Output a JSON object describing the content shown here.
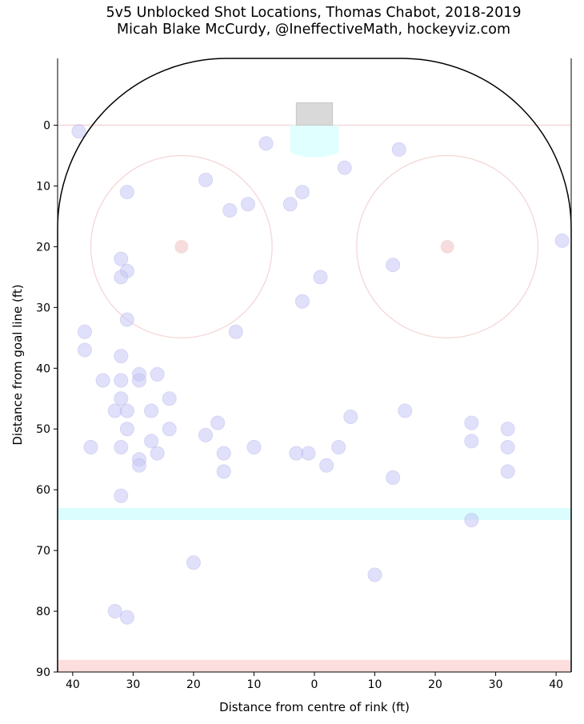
{
  "chart_data": {
    "type": "scatter",
    "title_line1": "5v5 Unblocked Shot Locations, Thomas Chabot, 2018-2019",
    "title_line2": "Micah Blake McCurdy, @IneffectiveMath, hockeyviz.com",
    "xlabel": "Distance from centre of rink (ft)",
    "ylabel": "Distance from goal line (ft)",
    "xlim": [
      42.5,
      -42.5
    ],
    "ylim": [
      90,
      -11
    ],
    "xticks": [
      40,
      30,
      20,
      10,
      0,
      10,
      20,
      30,
      40
    ],
    "xtick_values": [
      40,
      30,
      20,
      10,
      0,
      -10,
      -20,
      -30,
      -40
    ],
    "yticks": [
      0,
      10,
      20,
      30,
      40,
      50,
      60,
      70,
      80,
      90
    ],
    "colors": {
      "shot": "#c8c8f6",
      "shot_edge": "#b4b4ee",
      "faceoff": "#f5d6d6",
      "crease": "#e0ffff",
      "net": "#d9d9d9",
      "blue_line": "#dcfdfd",
      "red_line": "#fddede"
    },
    "shots": [
      {
        "x": 39,
        "y": 1
      },
      {
        "x": 8,
        "y": 3
      },
      {
        "x": -14,
        "y": 4
      },
      {
        "x": -5,
        "y": 7
      },
      {
        "x": 18,
        "y": 9
      },
      {
        "x": 31,
        "y": 11
      },
      {
        "x": 2,
        "y": 11
      },
      {
        "x": 11,
        "y": 13
      },
      {
        "x": 4,
        "y": 13
      },
      {
        "x": 14,
        "y": 14
      },
      {
        "x": -41,
        "y": 19
      },
      {
        "x": 32,
        "y": 22
      },
      {
        "x": -13,
        "y": 23
      },
      {
        "x": 31,
        "y": 24
      },
      {
        "x": 32,
        "y": 25
      },
      {
        "x": -1,
        "y": 25
      },
      {
        "x": 2,
        "y": 29
      },
      {
        "x": 31,
        "y": 32
      },
      {
        "x": 38,
        "y": 34
      },
      {
        "x": 13,
        "y": 34
      },
      {
        "x": 38,
        "y": 37
      },
      {
        "x": 32,
        "y": 38
      },
      {
        "x": 29,
        "y": 41
      },
      {
        "x": 26,
        "y": 41
      },
      {
        "x": 35,
        "y": 42
      },
      {
        "x": 32,
        "y": 42
      },
      {
        "x": 29,
        "y": 42
      },
      {
        "x": 32,
        "y": 45
      },
      {
        "x": 24,
        "y": 45
      },
      {
        "x": 33,
        "y": 47
      },
      {
        "x": 31,
        "y": 47
      },
      {
        "x": 27,
        "y": 47
      },
      {
        "x": -15,
        "y": 47
      },
      {
        "x": -6,
        "y": 48
      },
      {
        "x": 16,
        "y": 49
      },
      {
        "x": -26,
        "y": 49
      },
      {
        "x": 31,
        "y": 50
      },
      {
        "x": 24,
        "y": 50
      },
      {
        "x": -32,
        "y": 50
      },
      {
        "x": 18,
        "y": 51
      },
      {
        "x": 27,
        "y": 52
      },
      {
        "x": -26,
        "y": 52
      },
      {
        "x": 37,
        "y": 53
      },
      {
        "x": 32,
        "y": 53
      },
      {
        "x": 10,
        "y": 53
      },
      {
        "x": -4,
        "y": 53
      },
      {
        "x": -32,
        "y": 53
      },
      {
        "x": 26,
        "y": 54
      },
      {
        "x": 15,
        "y": 54
      },
      {
        "x": 3,
        "y": 54
      },
      {
        "x": 1,
        "y": 54
      },
      {
        "x": 29,
        "y": 55
      },
      {
        "x": 29,
        "y": 56
      },
      {
        "x": -2,
        "y": 56
      },
      {
        "x": 15,
        "y": 57
      },
      {
        "x": -32,
        "y": 57
      },
      {
        "x": -13,
        "y": 58
      },
      {
        "x": 32,
        "y": 61
      },
      {
        "x": -26,
        "y": 65
      },
      {
        "x": 20,
        "y": 72
      },
      {
        "x": -10,
        "y": 74
      },
      {
        "x": 33,
        "y": 80
      },
      {
        "x": 31,
        "y": 81
      }
    ]
  }
}
